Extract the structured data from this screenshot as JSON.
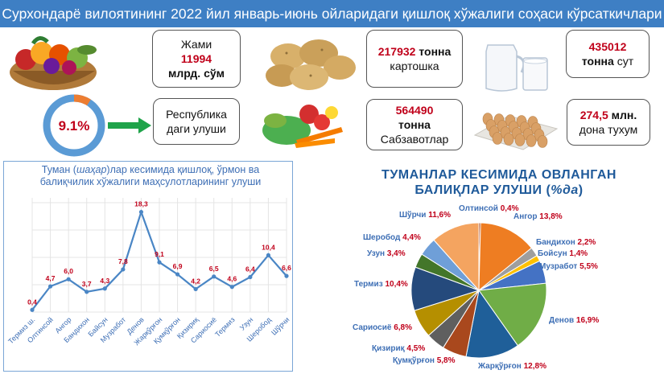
{
  "header": {
    "title": "Сурхондарё вилоятининг 2022 йил январь-июнь ойларидаги қишлоқ хўжалиги соҳаси кўрсаткичлари"
  },
  "colors": {
    "header": "#3e7fc4",
    "accent_red": "#c0001a",
    "label_blue": "#3e6fb5"
  },
  "cards": {
    "total": {
      "line1": "Жами",
      "value": "11994",
      "unit": "млрд. сўм"
    },
    "potato": {
      "value": "217932",
      "unit": "тонна",
      "label": "картошка"
    },
    "milk": {
      "value": "435012",
      "unit": "тонна",
      "unit2": "сут"
    },
    "share": {
      "line1": "Республика",
      "line2": "даги улуши"
    },
    "vegetables": {
      "value": "564490",
      "unit": "тонна",
      "label": "Сабзавотлар"
    },
    "eggs": {
      "value": "274,5",
      "unit": "млн.",
      "label": "дона тухум"
    }
  },
  "donut": {
    "label": "9.1%",
    "fraction": 0.091
  },
  "icons": [
    "fruit-basket-icon",
    "potatoes-icon",
    "milk-icon",
    "vegetables-icon",
    "eggs-icon",
    "arrow-right-icon"
  ],
  "chart_data": [
    {
      "type": "line",
      "title_parts": [
        "Туман (",
        "шаҳар",
        ")лар кесимида қишлоқ, ўрмон ва"
      ],
      "title_line2": "балиқчилик хўжалиги маҳсулотларининг улуши",
      "categories": [
        "Термиз ш.",
        "Олтинсой",
        "Ангор",
        "Бандихон",
        "Байсун",
        "Музработ",
        "Денов",
        "Жарқўрғон",
        "Қумқўрғон",
        "Қизириқ",
        "Сариосиё",
        "Термиз",
        "Узун",
        "Шеробод",
        "Шўрчи"
      ],
      "values": [
        0.4,
        4.7,
        6.0,
        3.7,
        4.3,
        7.8,
        18.3,
        9.1,
        6.9,
        4.2,
        6.5,
        4.6,
        6.4,
        10.4,
        6.6
      ],
      "value_labels": [
        "0,4",
        "4,7",
        "6,0",
        "3,7",
        "4,3",
        "7,8",
        "18,3",
        "9,1",
        "6,9",
        "4,2",
        "6,5",
        "4,6",
        "6,4",
        "10,4",
        "6,6"
      ],
      "ylim": [
        0,
        20
      ],
      "grid": true,
      "line_color": "#4a86c5",
      "label_color": "#c0001a"
    },
    {
      "type": "pie",
      "title_line1": "ТУМАНЛАР КЕСИМИДА ОВЛАНГАН",
      "title_line2_a": "БАЛИҚЛАР УЛУШИ (",
      "title_line2_b": "%да",
      "title_line2_c": ")",
      "slices": [
        {
          "name": "Олтинсой",
          "value": 0.4,
          "label": "0,4%",
          "color": "#a23d14"
        },
        {
          "name": "Ангор",
          "value": 13.8,
          "label": "13,8%",
          "color": "#ee7d22"
        },
        {
          "name": "Бандихон",
          "value": 2.2,
          "label": "2,2%",
          "color": "#9e9e9e"
        },
        {
          "name": "Бойсун",
          "value": 1.4,
          "label": "1,4%",
          "color": "#ffc000"
        },
        {
          "name": "Музработ",
          "value": 5.5,
          "label": "5,5%",
          "color": "#4472c4"
        },
        {
          "name": "Денов",
          "value": 16.9,
          "label": "16,9%",
          "color": "#70ad47"
        },
        {
          "name": "Жарқўрғон",
          "value": 12.8,
          "label": "12,8%",
          "color": "#1f5f99"
        },
        {
          "name": "Қумқўрғон",
          "value": 5.8,
          "label": "5,8%",
          "color": "#a9481d"
        },
        {
          "name": "Қизириқ",
          "value": 4.5,
          "label": "4,5%",
          "color": "#5f5f5f"
        },
        {
          "name": "Сариосиё",
          "value": 6.8,
          "label": "6,8%",
          "color": "#b58f00"
        },
        {
          "name": "Термиз",
          "value": 10.4,
          "label": "10,4%",
          "color": "#254a7c"
        },
        {
          "name": "Узун",
          "value": 3.4,
          "label": "3,4%",
          "color": "#43762a"
        },
        {
          "name": "Шеробод",
          "value": 4.4,
          "label": "4,4%",
          "color": "#6f9fd8"
        },
        {
          "name": "Шўрчи",
          "value": 11.6,
          "label": "11,6%",
          "color": "#f4a460"
        }
      ],
      "name_color": "#3e6fb5",
      "value_color": "#c0001a"
    }
  ]
}
